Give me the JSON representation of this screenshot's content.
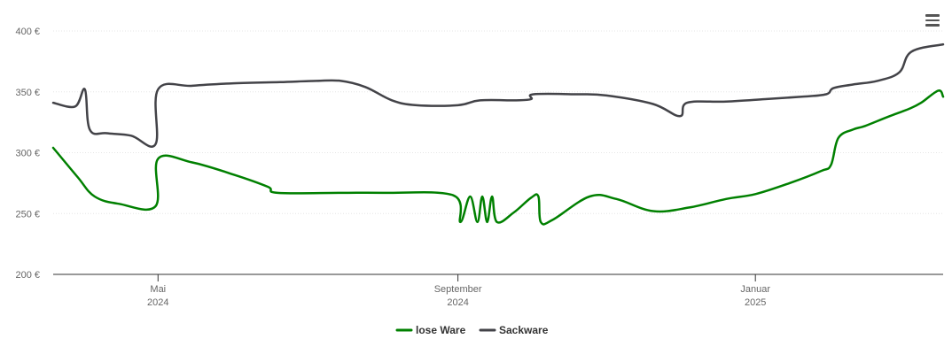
{
  "chart_data": {
    "type": "line",
    "title": "",
    "xlabel": "",
    "ylabel": "",
    "ylim": [
      200,
      400
    ],
    "y_ticks": [
      {
        "value": 200,
        "label": "200 €"
      },
      {
        "value": 250,
        "label": "250 €"
      },
      {
        "value": 300,
        "label": "300 €"
      },
      {
        "value": 350,
        "label": "350 €"
      },
      {
        "value": 400,
        "label": "400 €"
      }
    ],
    "xlim": [
      "2024-03-19",
      "2025-03-19"
    ],
    "x_ticks": [
      {
        "date": "2024-05-01",
        "month": "Mai",
        "year": "2024"
      },
      {
        "date": "2024-09-01",
        "month": "September",
        "year": "2024"
      },
      {
        "date": "2025-01-01",
        "month": "Januar",
        "year": "2025"
      }
    ],
    "grid": true,
    "legend_position": "bottom-center",
    "series": [
      {
        "name": "lose Ware",
        "color": "#008000",
        "points": [
          [
            "2024-03-19",
            304
          ],
          [
            "2024-03-29",
            280
          ],
          [
            "2024-04-05",
            264
          ],
          [
            "2024-04-15",
            258
          ],
          [
            "2024-04-30",
            256
          ],
          [
            "2024-05-01",
            295
          ],
          [
            "2024-05-15",
            292
          ],
          [
            "2024-06-01",
            282
          ],
          [
            "2024-06-15",
            272
          ],
          [
            "2024-06-19",
            267
          ],
          [
            "2024-07-15",
            267
          ],
          [
            "2024-08-01",
            267
          ],
          [
            "2024-08-30",
            265
          ],
          [
            "2024-09-02",
            243
          ],
          [
            "2024-09-06",
            264
          ],
          [
            "2024-09-09",
            243
          ],
          [
            "2024-09-11",
            264
          ],
          [
            "2024-09-13",
            243
          ],
          [
            "2024-09-15",
            264
          ],
          [
            "2024-09-17",
            243
          ],
          [
            "2024-09-24",
            251
          ],
          [
            "2024-10-01",
            263
          ],
          [
            "2024-10-04",
            264
          ],
          [
            "2024-10-05",
            243
          ],
          [
            "2024-10-10",
            245
          ],
          [
            "2024-10-25",
            264
          ],
          [
            "2024-11-05",
            262
          ],
          [
            "2024-11-20",
            252
          ],
          [
            "2024-12-05",
            255
          ],
          [
            "2024-12-20",
            262
          ],
          [
            "2025-01-01",
            266
          ],
          [
            "2025-01-15",
            275
          ],
          [
            "2025-01-28",
            285
          ],
          [
            "2025-02-01",
            290
          ],
          [
            "2025-02-04",
            312
          ],
          [
            "2025-02-10",
            319
          ],
          [
            "2025-02-15",
            322
          ],
          [
            "2025-02-25",
            330
          ],
          [
            "2025-03-05",
            336
          ],
          [
            "2025-03-10",
            341
          ],
          [
            "2025-03-17",
            351
          ],
          [
            "2025-03-19",
            346
          ]
        ]
      },
      {
        "name": "Sackware",
        "color": "#434348",
        "points": [
          [
            "2024-03-19",
            341
          ],
          [
            "2024-03-28",
            338
          ],
          [
            "2024-04-01",
            352
          ],
          [
            "2024-04-03",
            319
          ],
          [
            "2024-04-10",
            316
          ],
          [
            "2024-04-20",
            314
          ],
          [
            "2024-04-30",
            307
          ],
          [
            "2024-05-01",
            352
          ],
          [
            "2024-05-15",
            355
          ],
          [
            "2024-06-01",
            357
          ],
          [
            "2024-06-20",
            358
          ],
          [
            "2024-07-05",
            359
          ],
          [
            "2024-07-15",
            359
          ],
          [
            "2024-07-25",
            354
          ],
          [
            "2024-08-05",
            343
          ],
          [
            "2024-08-15",
            339
          ],
          [
            "2024-09-01",
            339
          ],
          [
            "2024-09-10",
            343
          ],
          [
            "2024-09-25",
            343
          ],
          [
            "2024-10-01",
            344
          ],
          [
            "2024-10-02",
            348
          ],
          [
            "2024-10-20",
            348
          ],
          [
            "2024-11-01",
            347
          ],
          [
            "2024-11-20",
            340
          ],
          [
            "2024-12-01",
            330
          ],
          [
            "2024-12-04",
            341
          ],
          [
            "2024-12-20",
            342
          ],
          [
            "2025-01-05",
            344
          ],
          [
            "2025-01-20",
            346
          ],
          [
            "2025-01-30",
            348
          ],
          [
            "2025-02-02",
            353
          ],
          [
            "2025-02-10",
            356
          ],
          [
            "2025-02-20",
            359
          ],
          [
            "2025-03-01",
            366
          ],
          [
            "2025-03-06",
            383
          ],
          [
            "2025-03-19",
            389
          ]
        ]
      }
    ]
  },
  "menu": {
    "icon": "hamburger-menu-icon"
  }
}
